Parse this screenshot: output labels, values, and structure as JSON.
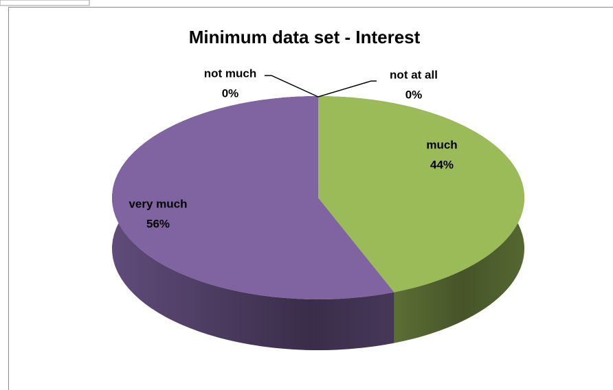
{
  "chart_data": {
    "type": "pie",
    "title": "Minimum data set - Interest",
    "categories": [
      "not at all",
      "not much",
      "much",
      "very much"
    ],
    "values": [
      0,
      0,
      44,
      56
    ],
    "value_labels": [
      "0%",
      "0%",
      "44%",
      "56%"
    ],
    "colors": [
      "#4f81bd",
      "#c0504d",
      "#9bbb59",
      "#8064a2"
    ]
  }
}
